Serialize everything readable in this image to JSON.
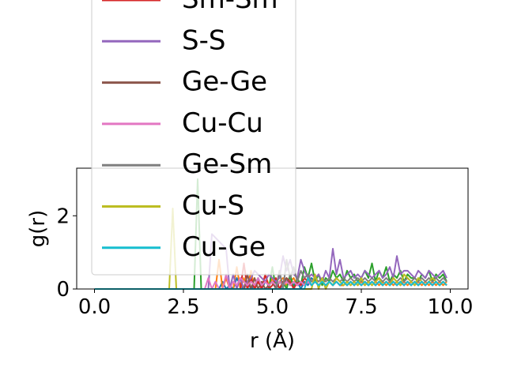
{
  "chart_data": {
    "type": "line",
    "title": "",
    "xlabel": "r (Å)",
    "ylabel": "g(r)",
    "xlim": [
      -0.5,
      10.5
    ],
    "ylim": [
      0,
      3.3
    ],
    "x_ticks": [
      0.0,
      2.5,
      5.0,
      7.5,
      10.0
    ],
    "x_tick_labels": [
      "0.0",
      "2.5",
      "5.0",
      "7.5",
      "10.0"
    ],
    "y_ticks": [
      0,
      2
    ],
    "y_tick_labels": [
      "0",
      "2"
    ],
    "grid": false,
    "legend_position": "upper-left (extends above plot)",
    "x": [
      0.0,
      0.1,
      0.2,
      0.3,
      0.4,
      0.5,
      0.6,
      0.7,
      0.8,
      0.9,
      1.0,
      1.1,
      1.2,
      1.3,
      1.4,
      1.5,
      1.6,
      1.7,
      1.8,
      1.9,
      2.0,
      2.1,
      2.2,
      2.3,
      2.4,
      2.5,
      2.6,
      2.7,
      2.8,
      2.9,
      3.0,
      3.1,
      3.2,
      3.3,
      3.4,
      3.5,
      3.6,
      3.7,
      3.8,
      3.9,
      4.0,
      4.1,
      4.2,
      4.3,
      4.4,
      4.5,
      4.6,
      4.7,
      4.8,
      4.9,
      5.0,
      5.1,
      5.2,
      5.3,
      5.4,
      5.5,
      5.6,
      5.7,
      5.8,
      5.9,
      6.0,
      6.1,
      6.2,
      6.3,
      6.4,
      6.5,
      6.6,
      6.7,
      6.8,
      6.9,
      7.0,
      7.1,
      7.2,
      7.3,
      7.4,
      7.5,
      7.6,
      7.7,
      7.8,
      7.9,
      8.0,
      8.1,
      8.2,
      8.3,
      8.4,
      8.5,
      8.6,
      8.7,
      8.8,
      8.9,
      9.0,
      9.1,
      9.2,
      9.3,
      9.4,
      9.5,
      9.6,
      9.7,
      9.8,
      9.9
    ],
    "series": [
      {
        "name": "",
        "color": "#1f77b4",
        "values": [
          0,
          0,
          0,
          0,
          0,
          0,
          0,
          0,
          0,
          0,
          0,
          0,
          0,
          0,
          0,
          0,
          0,
          0,
          0,
          0,
          0,
          0,
          0,
          0,
          0,
          0,
          0,
          0,
          0,
          0,
          0,
          0,
          0,
          0,
          0,
          0,
          0.2,
          0,
          0.1,
          0,
          0.3,
          0.1,
          0,
          0.2,
          0,
          0.1,
          0.3,
          0,
          0.2,
          0.1,
          0.3,
          0.2,
          0,
          0.1,
          0.2,
          0.3,
          0.1,
          0.2,
          0,
          0.2,
          0.1,
          0.3,
          0.2,
          0.1,
          0.2,
          0.1,
          0.2,
          0.1,
          0.2,
          0.1,
          0.2,
          0.1,
          0.2,
          0.1,
          0.2,
          0.1,
          0.2,
          0.1,
          0.2,
          0.1,
          0.2,
          0.1,
          0.2,
          0.1,
          0.2,
          0.1,
          0.2,
          0.1,
          0.2,
          0.1,
          0.2,
          0.1,
          0.2,
          0.1,
          0.2,
          0.1,
          0.2,
          0.1,
          0.2,
          0.1
        ]
      },
      {
        "name": "",
        "color": "#ff7f0e",
        "values": [
          0,
          0,
          0,
          0,
          0,
          0,
          0,
          0,
          0,
          0,
          0,
          0,
          0,
          0,
          0,
          0,
          0,
          0,
          0,
          0,
          0,
          0,
          0,
          0,
          0,
          0,
          0,
          0,
          0,
          0,
          0,
          0,
          0,
          0,
          0,
          0.8,
          0,
          0.3,
          0,
          0,
          0.6,
          0,
          0.3,
          0,
          0.5,
          0,
          0.2,
          0,
          0.4,
          0.1,
          0.3,
          0,
          0.2,
          0.3,
          0.1,
          0.2,
          0.3,
          0.1,
          0.2,
          0.1,
          0.3,
          0.1,
          0.2,
          0.1,
          0.2,
          0.1,
          0.2,
          0.1,
          0.2,
          0.1,
          0.1,
          0.2,
          0.1,
          0.2,
          0.1,
          0.2,
          0.1,
          0.2,
          0.1,
          0.2,
          0.1,
          0.2,
          0.1,
          0.2,
          0.1,
          0.2,
          0.1,
          0.2,
          0.1,
          0.2,
          0.1,
          0.2,
          0.1,
          0.2,
          0.1,
          0.2,
          0.1,
          0.2,
          0.1,
          0.2
        ]
      },
      {
        "name": "",
        "color": "#2ca02c",
        "values": [
          0,
          0,
          0,
          0,
          0,
          0,
          0,
          0,
          0,
          0,
          0,
          0,
          0,
          0,
          0,
          0,
          0,
          0,
          0,
          0,
          0,
          0,
          0,
          0,
          0,
          0,
          0,
          0,
          0,
          3.0,
          0,
          0,
          0,
          0,
          0,
          0,
          0,
          0,
          0,
          0,
          0,
          0,
          0,
          0,
          0,
          0,
          0,
          0,
          0,
          0,
          0.6,
          0,
          0,
          0.2,
          0,
          0.4,
          0,
          0.3,
          0.1,
          0.6,
          0.3,
          0.7,
          0.2,
          0.4,
          0.1,
          0.3,
          0.2,
          0.5,
          0.3,
          0.4,
          0.2,
          0.5,
          0.3,
          0.4,
          0.2,
          0.3,
          0.5,
          0.3,
          0.7,
          0.2,
          0.5,
          0.3,
          0.6,
          0.2,
          0.4,
          0.3,
          0.5,
          0.2,
          0.4,
          0.3,
          0.3,
          0.2,
          0.4,
          0.3,
          0.5,
          0.2,
          0.4,
          0.3,
          0.4,
          0.2
        ]
      },
      {
        "name": "Sm-Sm",
        "color": "#d62728",
        "values": [
          0,
          0,
          0,
          0,
          0,
          0,
          0,
          0,
          0,
          0,
          0,
          0,
          0,
          0,
          0,
          0,
          0,
          0,
          0,
          0,
          0,
          0,
          0,
          0,
          0,
          0,
          0,
          0,
          0,
          0,
          0,
          0,
          0,
          0,
          0,
          0,
          0,
          0,
          0,
          0,
          0,
          0,
          0.7,
          0,
          0.3,
          0,
          0.2,
          0,
          0.4,
          0,
          0.1,
          0.3,
          0,
          0.2,
          0.3,
          0.2,
          0,
          0.2,
          0.1,
          0.3,
          0.2,
          0.1,
          0.2,
          0.1,
          0.2,
          0.1,
          0.2,
          0.1,
          0.2,
          0.1,
          0.2,
          0.1,
          0.2,
          0.1,
          0.2,
          0.1,
          0.2,
          0.1,
          0.2,
          0.1,
          0.2,
          0.1,
          0.2,
          0.1,
          0.2,
          0.1,
          0.2,
          0.1,
          0.2,
          0.1,
          0.2,
          0.1,
          0.2,
          0.1,
          0.2,
          0.1,
          0.2,
          0.1,
          0.2,
          0.1
        ]
      },
      {
        "name": "S-S",
        "color": "#9467bd",
        "values": [
          0,
          0,
          0,
          0,
          0,
          0,
          0,
          0,
          0,
          0,
          0,
          0,
          0,
          0,
          0,
          0,
          0,
          0,
          0,
          0,
          0,
          0,
          0,
          0,
          0,
          0,
          0,
          0,
          0,
          0,
          0,
          0,
          0,
          1.5,
          1.4,
          1.3,
          1.2,
          1.1,
          0,
          0.4,
          0,
          0.3,
          0,
          0.2,
          0.3,
          0.5,
          0.4,
          0.3,
          0.2,
          0.4,
          0.3,
          0.2,
          0.3,
          0.9,
          0.5,
          0.8,
          0.4,
          0.3,
          0.8,
          0.5,
          0.3,
          0.4,
          0.3,
          0.4,
          0.2,
          0.5,
          0.3,
          1.1,
          0.4,
          0.8,
          0.3,
          0.4,
          0.5,
          0.3,
          0.4,
          0.3,
          0.5,
          0.4,
          0.3,
          0.4,
          0.5,
          0.3,
          0.4,
          0.6,
          0.3,
          0.9,
          0.4,
          0.5,
          0.5,
          0.4,
          0.3,
          0.5,
          0.4,
          0.3,
          0.5,
          0.4,
          0.3,
          0.4,
          0.5,
          0.3
        ]
      },
      {
        "name": "Ge-Ge",
        "color": "#8c564b",
        "values": [
          0,
          0,
          0,
          0,
          0,
          0,
          0,
          0,
          0,
          0,
          0,
          0,
          0,
          0,
          0,
          0,
          0,
          0,
          0,
          0,
          0,
          0,
          0,
          0,
          0,
          0,
          0,
          0,
          0,
          0,
          0,
          0,
          0,
          0,
          0,
          0,
          0,
          0,
          0,
          0,
          0,
          0,
          0,
          0.4,
          0,
          0.3,
          0,
          0.2,
          0,
          0.1,
          0.2,
          0,
          0.2,
          0.1,
          0.3,
          0.1,
          0.2,
          0.1,
          0.2,
          0.1,
          0.2,
          0.1,
          0.2,
          0.1,
          0.2,
          0.1,
          0.2,
          0.1,
          0.2,
          0.1,
          0.2,
          0.1,
          0.2,
          0.1,
          0.2,
          0.1,
          0.2,
          0.1,
          0.2,
          0.1,
          0.2,
          0.1,
          0.2,
          0.1,
          0.2,
          0.1,
          0.2,
          0.1,
          0.2,
          0.1,
          0.2,
          0.1,
          0.2,
          0.1,
          0.2,
          0.1,
          0.2,
          0.1,
          0.2,
          0.1
        ]
      },
      {
        "name": "Cu-Cu",
        "color": "#e377c2",
        "values": [
          0,
          0,
          0,
          0,
          0,
          0,
          0,
          0,
          0,
          0,
          0,
          0,
          0,
          0,
          0,
          0,
          0,
          0,
          0,
          0,
          0,
          0,
          0,
          0,
          0,
          0,
          0,
          0,
          0,
          0,
          0,
          0,
          0.3,
          0,
          0.2,
          0,
          0,
          0.4,
          0,
          0.2,
          0.1,
          0.3,
          0.2,
          0.1,
          0.2,
          0.1,
          0.3,
          0.1,
          0.2,
          0.1,
          0.2,
          0.1,
          0.2,
          0.1,
          0.2,
          0.1,
          0.2,
          0.1,
          0.2,
          0.1,
          0.2,
          0.1,
          0.2,
          0.1,
          0.2,
          0.1,
          0.2,
          0.1,
          0.2,
          0.1,
          0.2,
          0.1,
          0.2,
          0.1,
          0.2,
          0.1,
          0.2,
          0.1,
          0.2,
          0.1,
          0.2,
          0.1,
          0.2,
          0.1,
          0.2,
          0.1,
          0.2,
          0.1,
          0.2,
          0.1,
          0.2,
          0.1,
          0.2,
          0.1,
          0.2,
          0.1,
          0.2,
          0.1,
          0.2,
          0.1
        ]
      },
      {
        "name": "Ge-Sm",
        "color": "#7f7f7f",
        "values": [
          0,
          0,
          0,
          0,
          0,
          0,
          0,
          0,
          0,
          0,
          0,
          0,
          0,
          0,
          0,
          0,
          0,
          0,
          0,
          0,
          0,
          0,
          0,
          0,
          0,
          0,
          0,
          0,
          0,
          0,
          0,
          0,
          0,
          0,
          0,
          0,
          0,
          0,
          0,
          0,
          0,
          0,
          0,
          0,
          0,
          0,
          0,
          0,
          0,
          0,
          0,
          0,
          0.5,
          0,
          0.8,
          0.3,
          0.6,
          0.2,
          0.5,
          0.3,
          0.4,
          0.2,
          0.3,
          0.2,
          0.3,
          0.2,
          0.3,
          0.2,
          0.3,
          0.2,
          0.3,
          0.2,
          0.3,
          0.2,
          0.3,
          0.2,
          0.3,
          0.2,
          0.3,
          0.2,
          0.3,
          0.2,
          0.3,
          0.2,
          0.3,
          0.2,
          0.3,
          0.2,
          0.3,
          0.2,
          0.3,
          0.2,
          0.3,
          0.2,
          0.3,
          0.2,
          0.3,
          0.2,
          0.3,
          0.2
        ]
      },
      {
        "name": "Cu-S",
        "color": "#bcbd22",
        "values": [
          0,
          0,
          0,
          0,
          0,
          0,
          0,
          0,
          0,
          0,
          0,
          0,
          0,
          0,
          0,
          0,
          0,
          0,
          0,
          0,
          0,
          0,
          2.2,
          0,
          0,
          0,
          0,
          0,
          0,
          0,
          0,
          0,
          0,
          0,
          0,
          0,
          0,
          0,
          0,
          0,
          0,
          0,
          0,
          0,
          0,
          0,
          0,
          0,
          0,
          0,
          0,
          0,
          0,
          0,
          0,
          0,
          0,
          0,
          0,
          0,
          0,
          0,
          0.4,
          0,
          0.3,
          0,
          0.2,
          0.1,
          0.3,
          0.2,
          0.1,
          0.2,
          0.1,
          0.2,
          0.1,
          0.3,
          0.1,
          0.2,
          0.1,
          0.2,
          0.3,
          0.1,
          0.2,
          0.1,
          0.3,
          0.2,
          0.1,
          0.4,
          0.3,
          0.2,
          0.1,
          0.3,
          0.2,
          0.1,
          0.2,
          0.3,
          0.2,
          0.1,
          0.2,
          0.1
        ]
      },
      {
        "name": "Cu-Ge",
        "color": "#17becf",
        "values": [
          0,
          0,
          0,
          0,
          0,
          0,
          0,
          0,
          0,
          0,
          0,
          0,
          0,
          0,
          0,
          0,
          0,
          0,
          0,
          0,
          0,
          0,
          0,
          0,
          0,
          0,
          0,
          0,
          0,
          0,
          0,
          0,
          0,
          0,
          0,
          0,
          0,
          0,
          0,
          0,
          0,
          0,
          0,
          0,
          0,
          0,
          0,
          0,
          0,
          0,
          0,
          0,
          0,
          0,
          0,
          0,
          0,
          0,
          0,
          0,
          0.3,
          0.1,
          0.2,
          0.1,
          0.2,
          0.1,
          0.2,
          0.1,
          0.2,
          0.1,
          0.2,
          0.1,
          0.2,
          0.1,
          0.2,
          0.1,
          0.2,
          0.1,
          0.2,
          0.1,
          0.2,
          0.1,
          0.2,
          0.1,
          0.2,
          0.1,
          0.2,
          0.1,
          0.2,
          0.1,
          0.2,
          0.1,
          0.2,
          0.1,
          0.2,
          0.1,
          0.2,
          0.1,
          0.2,
          0.1
        ]
      }
    ]
  }
}
